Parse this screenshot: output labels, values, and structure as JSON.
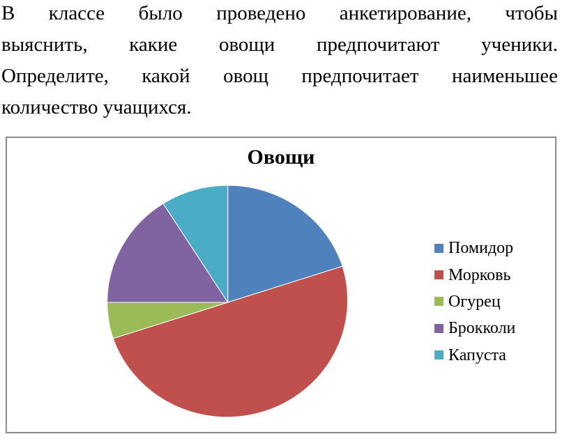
{
  "question": {
    "lines": [
      "В классе было проведено анкетирование, чтобы",
      "выяснить, какие овощи предпочитают ученики.",
      "Определите, какой овощ предпочитает наименьшее",
      "количество учащихся."
    ]
  },
  "chart_data": {
    "type": "pie",
    "title": "Овощи",
    "categories": [
      "Помидор",
      "Морковь",
      "Огурец",
      "Брокколи",
      "Капуста"
    ],
    "values": [
      20,
      50,
      5,
      16,
      9
    ],
    "unit": "percent",
    "colors": [
      "#4F81BD",
      "#C0504D",
      "#9BBB59",
      "#8064A2",
      "#4BACC6"
    ],
    "legend_position": "right",
    "start_angle_deg": 0,
    "direction": "clockwise",
    "panel_border_color": "#8a8a8a",
    "slice_separator_color": "#ffffff"
  }
}
